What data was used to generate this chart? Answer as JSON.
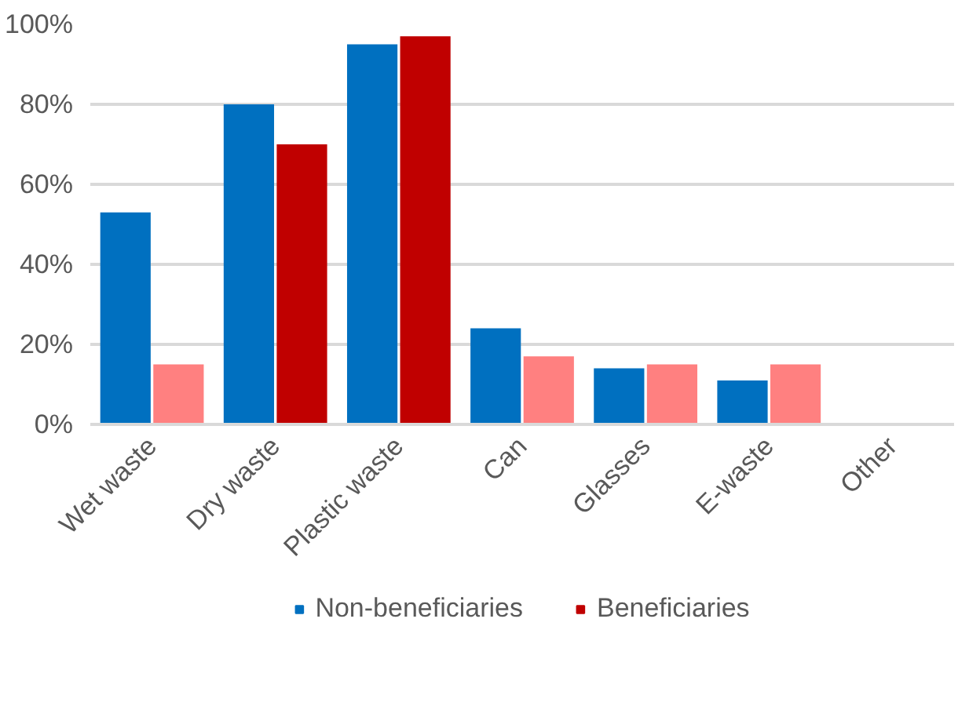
{
  "chart_data": {
    "type": "bar",
    "categories": [
      "Wet waste",
      "Dry waste",
      "Plastic waste",
      "Can",
      "Glasses",
      "E-waste",
      "Other"
    ],
    "series": [
      {
        "name": "Non-beneficiaries",
        "color": "#0070c0",
        "values": [
          53,
          80,
          95,
          24,
          14,
          11,
          null
        ]
      },
      {
        "name": "Beneficiaries",
        "color": "#c00000",
        "colors": [
          "#ff8080",
          "#c00000",
          "#c00000",
          "#ff8080",
          "#ff8080",
          "#ff8080",
          "#ff8080"
        ],
        "values": [
          15,
          70,
          97,
          17,
          15,
          15,
          null
        ]
      }
    ],
    "ylim": [
      0,
      100
    ],
    "yticks": [
      {
        "value": 0,
        "label": "0%"
      },
      {
        "value": 20,
        "label": "20%"
      },
      {
        "value": 40,
        "label": "40%"
      },
      {
        "value": 60,
        "label": "60%"
      },
      {
        "value": 80,
        "label": "80%"
      },
      {
        "value": 100,
        "label": "100%"
      }
    ],
    "grid": "y",
    "legend": "bottom"
  }
}
